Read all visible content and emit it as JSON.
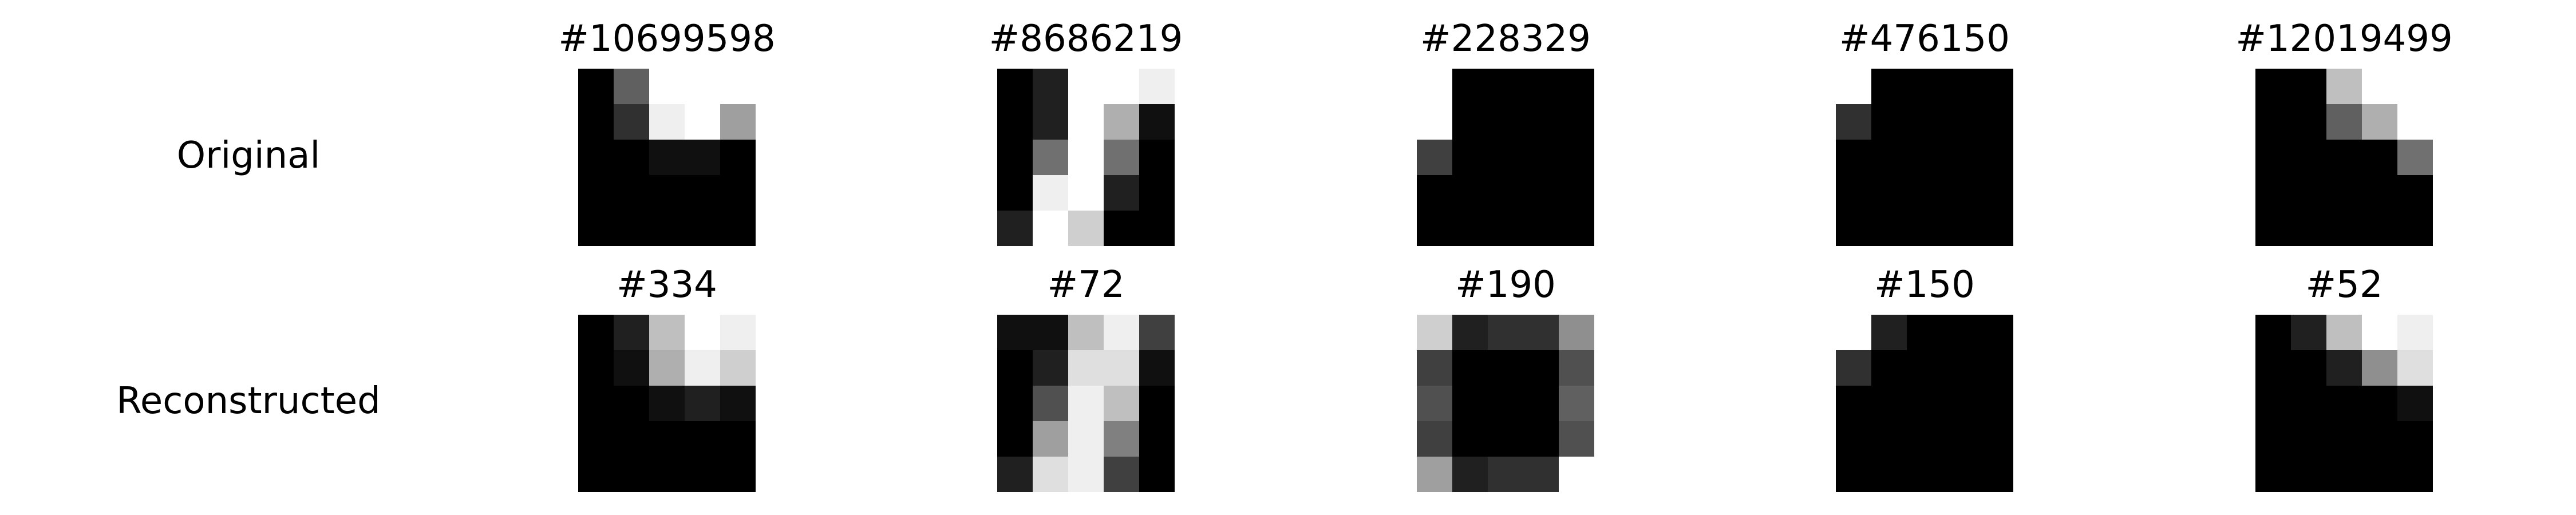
{
  "chart_data": {
    "type": "heatmap",
    "colormap": "gray",
    "value_range": [
      0,
      16
    ],
    "grid": false,
    "rows": [
      {
        "label": "Original",
        "panels": [
          {
            "title": "#10699598",
            "pixels": [
              [
                0,
                6,
                16,
                16,
                16
              ],
              [
                0,
                3,
                15,
                16,
                10
              ],
              [
                0,
                0,
                1,
                1,
                0
              ],
              [
                0,
                0,
                0,
                0,
                0
              ],
              [
                0,
                0,
                0,
                0,
                0
              ]
            ]
          },
          {
            "title": "#8686219",
            "pixels": [
              [
                0,
                2,
                16,
                16,
                15
              ],
              [
                0,
                2,
                16,
                11,
                1
              ],
              [
                0,
                7,
                16,
                7,
                0
              ],
              [
                0,
                15,
                16,
                2,
                0
              ],
              [
                2,
                16,
                13,
                0,
                0
              ]
            ]
          },
          {
            "title": "#228329",
            "pixels": [
              [
                16,
                0,
                0,
                0,
                0
              ],
              [
                16,
                0,
                0,
                0,
                0
              ],
              [
                4,
                0,
                0,
                0,
                0
              ],
              [
                0,
                0,
                0,
                0,
                0
              ],
              [
                0,
                0,
                0,
                0,
                0
              ]
            ]
          },
          {
            "title": "#476150",
            "pixels": [
              [
                16,
                0,
                0,
                0,
                0
              ],
              [
                3,
                0,
                0,
                0,
                0
              ],
              [
                0,
                0,
                0,
                0,
                0
              ],
              [
                0,
                0,
                0,
                0,
                0
              ],
              [
                0,
                0,
                0,
                0,
                0
              ]
            ]
          },
          {
            "title": "#12019499",
            "pixels": [
              [
                0,
                0,
                12,
                16,
                16
              ],
              [
                0,
                0,
                6,
                11,
                16
              ],
              [
                0,
                0,
                0,
                0,
                7
              ],
              [
                0,
                0,
                0,
                0,
                0
              ],
              [
                0,
                0,
                0,
                0,
                0
              ]
            ]
          }
        ]
      },
      {
        "label": "Reconstructed",
        "panels": [
          {
            "title": "#334",
            "pixels": [
              [
                0,
                2,
                12,
                16,
                15
              ],
              [
                0,
                1,
                11,
                15,
                13
              ],
              [
                0,
                0,
                1,
                2,
                1
              ],
              [
                0,
                0,
                0,
                0,
                0
              ],
              [
                0,
                0,
                0,
                0,
                0
              ]
            ]
          },
          {
            "title": "#72",
            "pixels": [
              [
                1,
                1,
                12,
                15,
                4
              ],
              [
                0,
                2,
                14,
                14,
                1
              ],
              [
                0,
                5,
                15,
                12,
                0
              ],
              [
                0,
                10,
                15,
                8,
                0
              ],
              [
                2,
                14,
                15,
                4,
                0
              ]
            ]
          },
          {
            "title": "#190",
            "pixels": [
              [
                13,
                2,
                3,
                3,
                9
              ],
              [
                4,
                0,
                0,
                0,
                5
              ],
              [
                5,
                0,
                0,
                0,
                6
              ],
              [
                4,
                0,
                0,
                0,
                5
              ],
              [
                10,
                2,
                3,
                3,
                16
              ]
            ]
          },
          {
            "title": "#150",
            "pixels": [
              [
                16,
                2,
                0,
                0,
                0
              ],
              [
                3,
                0,
                0,
                0,
                0
              ],
              [
                0,
                0,
                0,
                0,
                0
              ],
              [
                0,
                0,
                0,
                0,
                0
              ],
              [
                0,
                0,
                0,
                0,
                0
              ]
            ]
          },
          {
            "title": "#52",
            "pixels": [
              [
                0,
                2,
                12,
                16,
                15
              ],
              [
                0,
                0,
                2,
                9,
                14
              ],
              [
                0,
                0,
                0,
                0,
                1
              ],
              [
                0,
                0,
                0,
                0,
                0
              ],
              [
                0,
                0,
                0,
                0,
                0
              ]
            ]
          }
        ]
      }
    ]
  }
}
